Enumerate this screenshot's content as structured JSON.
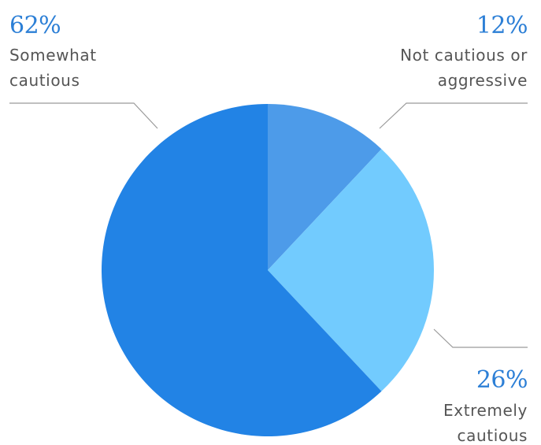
{
  "chart_data": {
    "type": "pie",
    "title": "",
    "slices": [
      {
        "label": "Not cautious or aggressive",
        "label_lines": [
          "Not cautious or",
          "aggressive"
        ],
        "value": 12,
        "value_text": "12%",
        "color": "#4d9be9"
      },
      {
        "label": "Extremely cautious",
        "label_lines": [
          "Extremely",
          "cautious"
        ],
        "value": 26,
        "value_text": "26%",
        "color": "#72cbfe"
      },
      {
        "label": "Somewhat cautious",
        "label_lines": [
          "Somewhat",
          "cautious"
        ],
        "value": 62,
        "value_text": "62%",
        "color": "#2283e5"
      }
    ],
    "start_angle": "12 o'clock",
    "direction": "clockwise",
    "legend": "none",
    "percent_color": "#2c7fd6",
    "label_color": "#555555",
    "leader_color": "#9a9a9a"
  }
}
